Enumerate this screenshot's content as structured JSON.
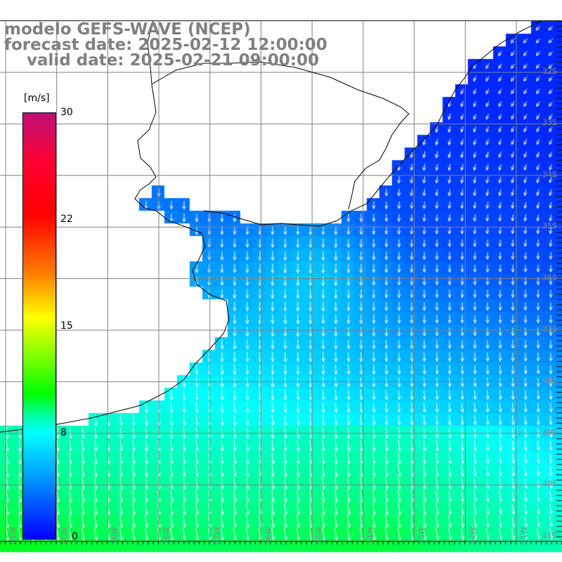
{
  "title": {
    "line1": "modelo GEFS-WAVE (NCEP)",
    "line2": "forecast date: 2025-02-12 12:00:00",
    "line3": "    valid date: 2025-02-21 09:00:00"
  },
  "colorbar": {
    "unit": "[m/s]",
    "labels": [
      "30",
      "22",
      "15",
      "8",
      "0"
    ],
    "range": [
      0,
      30
    ]
  },
  "axes": {
    "longitudes": [
      "61W",
      "60W",
      "59W",
      "58W",
      "57W",
      "56W",
      "55W",
      "54W",
      "53W",
      "52W",
      "51W"
    ],
    "latitudes": [
      "32S",
      "33S",
      "34S",
      "35S",
      "36S",
      "37S",
      "38S",
      "39S",
      "40S",
      "41S"
    ]
  },
  "colors": {
    "land": "#ffffff",
    "grid": "#808080",
    "arrows": "#ffffff",
    "coast": "#000000"
  }
}
